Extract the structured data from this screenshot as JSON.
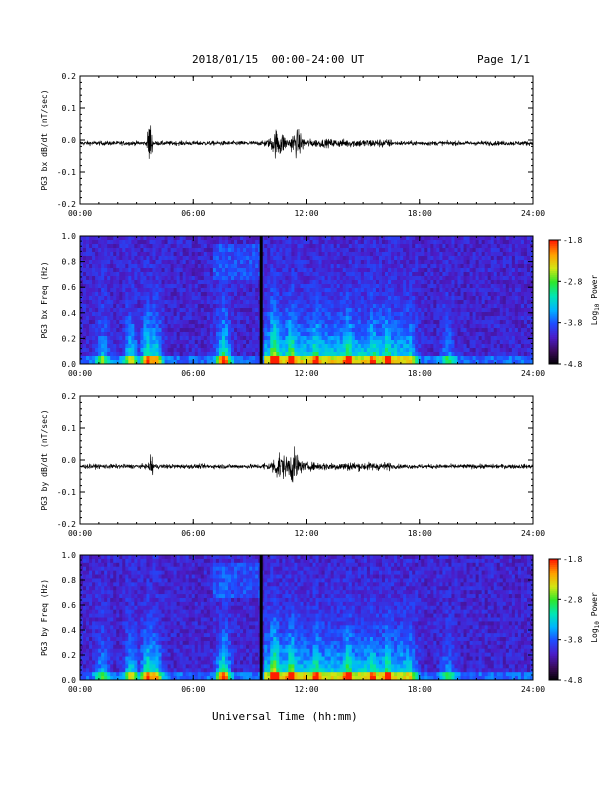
{
  "header": {
    "title": "2018/01/15  00:00-24:00 UT",
    "page": "Page 1/1"
  },
  "footer": {
    "xlabel": "Universal Time (hh:mm)"
  },
  "colorbar": {
    "title_main": "Log",
    "title_sub": "10",
    "title_rest": " Power",
    "ticks": [
      "-1.8",
      "-2.8",
      "-3.8",
      "-4.8"
    ],
    "values": [
      -1.8,
      -2.8,
      -3.8,
      -4.8
    ],
    "range": [
      -4.8,
      -1.8
    ],
    "colors": [
      "#000000",
      "#3a0a5a",
      "#4b1cc8",
      "#1f4cff",
      "#00b4ff",
      "#00e6b4",
      "#2ee62e",
      "#d2e614",
      "#ffa000",
      "#ff1e00"
    ]
  },
  "chart_data": [
    {
      "type": "line",
      "id": "bx-dbdt",
      "ylabel": "PG3 bx dB/dt (nT/sec)",
      "ylim": [
        -0.2,
        0.2
      ],
      "yticks": [
        "0.2",
        "0.1",
        "0.0",
        "-0.1",
        "-0.2"
      ],
      "ytick_values": [
        0.2,
        0.1,
        0.0,
        -0.1,
        -0.2
      ],
      "xlim": [
        0,
        24
      ],
      "xticks": [
        "00:00",
        "06:00",
        "12:00",
        "18:00",
        "24:00"
      ],
      "xtick_values": [
        0,
        6,
        12,
        18,
        24
      ],
      "features": [
        {
          "time_h": 3.7,
          "max": 0.09,
          "min": -0.14
        },
        {
          "time_h": 10.5,
          "max": 0.08,
          "min": -0.08
        },
        {
          "time_h": 11.5,
          "max": 0.07,
          "min": -0.06
        },
        {
          "time_h": 16.0,
          "max": 0.03,
          "min": -0.03
        }
      ],
      "baseline": -0.01
    },
    {
      "type": "heatmap",
      "id": "bx-spectrogram",
      "ylabel": "PG3 bx Freq (Hz)",
      "ylim": [
        0.0,
        1.0
      ],
      "yticks": [
        "1.0",
        "0.8",
        "0.6",
        "0.4",
        "0.2",
        "0.0"
      ],
      "ytick_values": [
        1.0,
        0.8,
        0.6,
        0.4,
        0.2,
        0.0
      ],
      "xlim": [
        0,
        24
      ],
      "xticks": [
        "00:00",
        "06:00",
        "12:00",
        "18:00",
        "24:00"
      ],
      "xtick_values": [
        0,
        6,
        12,
        18,
        24
      ],
      "value_label": "Log10 Power",
      "value_range": [
        -4.8,
        -1.8
      ],
      "data_gap_h": 9.6
    },
    {
      "type": "line",
      "id": "by-dbdt",
      "ylabel": "PG3 by dB/dt (nT/sec)",
      "ylim": [
        -0.2,
        0.2
      ],
      "yticks": [
        "0.2",
        "0.1",
        "0.0",
        "-0.1",
        "-0.2"
      ],
      "ytick_values": [
        0.2,
        0.1,
        0.0,
        -0.1,
        -0.2
      ],
      "xlim": [
        0,
        24
      ],
      "xticks": [
        "00:00",
        "06:00",
        "12:00",
        "18:00",
        "24:00"
      ],
      "xtick_values": [
        0,
        6,
        12,
        18,
        24
      ],
      "features": [
        {
          "time_h": 3.8,
          "max": 0.06,
          "min": -0.08
        },
        {
          "time_h": 10.6,
          "max": 0.07,
          "min": -0.08
        },
        {
          "time_h": 11.3,
          "max": 0.09,
          "min": -0.09
        },
        {
          "time_h": 14.4,
          "max": 0.03,
          "min": -0.04
        }
      ],
      "baseline": -0.02
    },
    {
      "type": "heatmap",
      "id": "by-spectrogram",
      "ylabel": "PG3 by Freq (Hz)",
      "ylim": [
        0.0,
        1.0
      ],
      "yticks": [
        "1.0",
        "0.8",
        "0.6",
        "0.4",
        "0.2",
        "0.0"
      ],
      "ytick_values": [
        1.0,
        0.8,
        0.6,
        0.4,
        0.2,
        0.0
      ],
      "xlim": [
        0,
        24
      ],
      "xticks": [
        "00:00",
        "06:00",
        "12:00",
        "18:00",
        "24:00"
      ],
      "xtick_values": [
        0,
        6,
        12,
        18,
        24
      ],
      "value_label": "Log10 Power",
      "value_range": [
        -4.8,
        -1.8
      ],
      "data_gap_h": 9.6
    }
  ]
}
